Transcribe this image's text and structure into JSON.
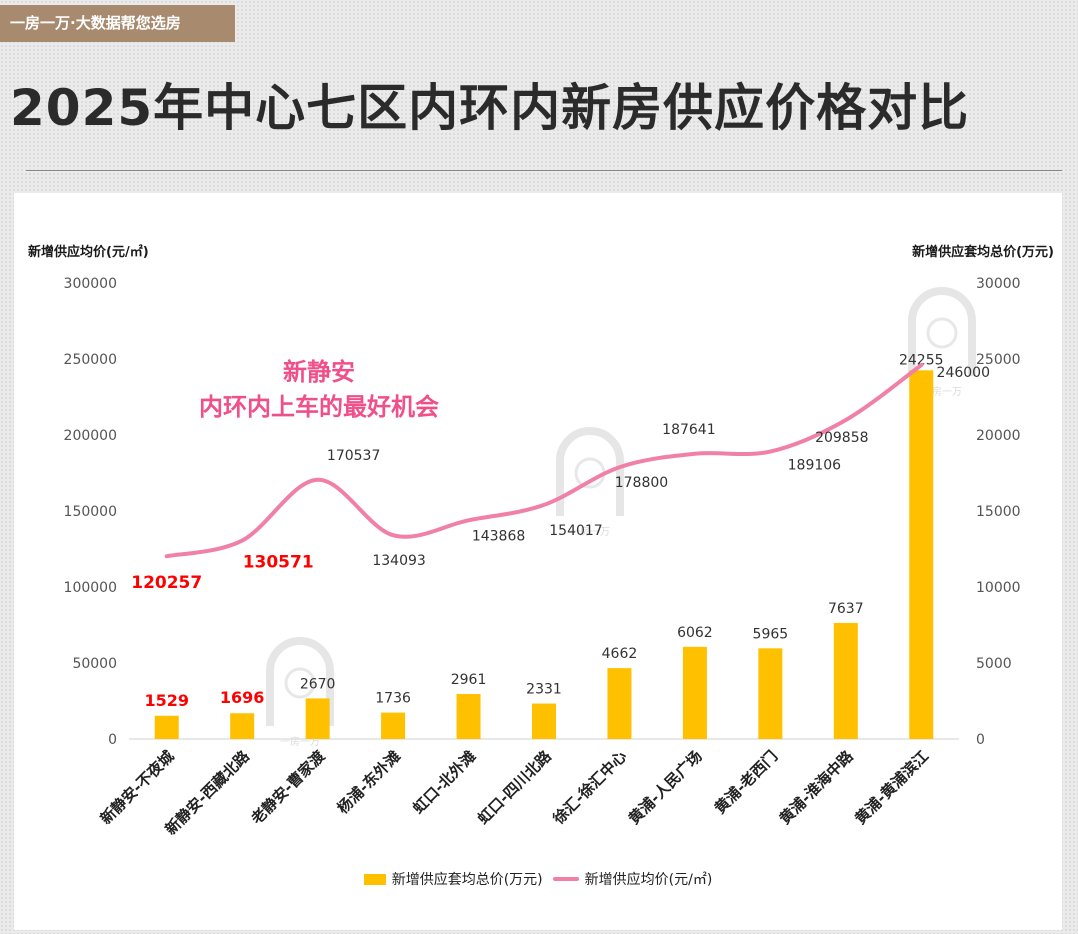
{
  "header": {
    "tag": "一房一万·大数据帮您选房",
    "title": "2025年中心七区内环内新房供应价格对比"
  },
  "callout": {
    "line1": "新静安",
    "line2": "内环内上车的最好机会"
  },
  "watermark_text": "一房一万",
  "colors": {
    "bar": "#ffc000",
    "line": "#f080a8",
    "highlight": "#ff0000",
    "callout": "#f0508a"
  },
  "chart_data": {
    "type": "bar+line",
    "categories": [
      "新静安-不夜城",
      "新静安-西藏北路",
      "老静安-曹家渡",
      "杨浦-东外滩",
      "虹口-北外滩",
      "虹口-四川北路",
      "徐汇-徐汇中心",
      "黄浦-人民广场",
      "黄浦-老西门",
      "黄浦-淮海中路",
      "黄浦-黄浦滨江"
    ],
    "series": [
      {
        "name": "新增供应套均总价(万元)",
        "type": "bar",
        "axis": "right",
        "values": [
          1529,
          1696,
          2670,
          1736,
          2961,
          2331,
          4662,
          6062,
          5965,
          7637,
          24255
        ],
        "highlight": [
          true,
          true,
          false,
          false,
          false,
          false,
          false,
          false,
          false,
          false,
          false
        ]
      },
      {
        "name": "新增供应均价(元/㎡)",
        "type": "line",
        "axis": "left",
        "values": [
          120257,
          130571,
          170537,
          134093,
          143868,
          154017,
          178800,
          187641,
          189106,
          209858,
          246000
        ],
        "highlight": [
          true,
          true,
          false,
          false,
          false,
          false,
          false,
          false,
          false,
          false,
          false
        ]
      }
    ],
    "y_left": {
      "label": "新增供应均价(元/㎡)",
      "range": [
        0,
        300000
      ],
      "ticks": [
        "0",
        "50000",
        "100000",
        "150000",
        "200000",
        "250000",
        "300000"
      ]
    },
    "y_right": {
      "label": "新增供应套均总价(万元)",
      "range": [
        0,
        30000
      ],
      "ticks": [
        "0",
        "5000",
        "10000",
        "15000",
        "20000",
        "25000",
        "30000"
      ]
    },
    "grid": false,
    "legend": "bottom"
  }
}
